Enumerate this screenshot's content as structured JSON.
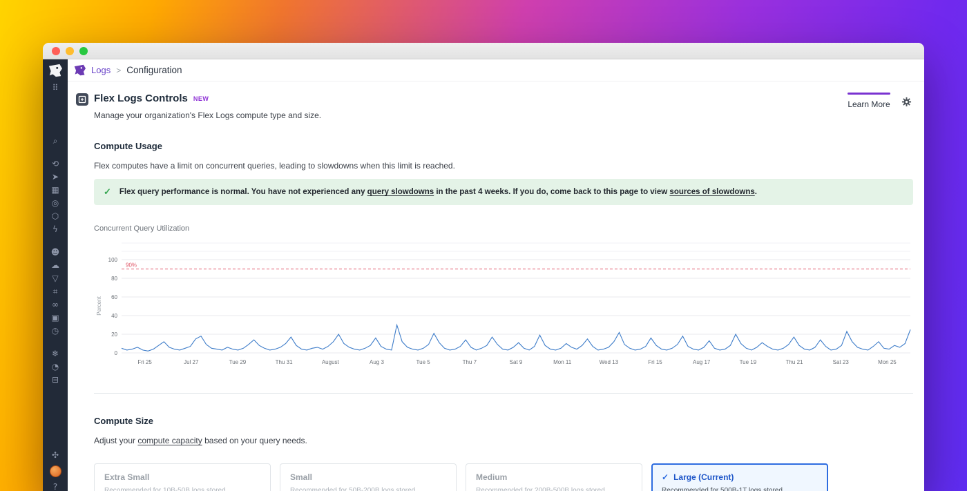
{
  "breadcrumb": {
    "app": "Logs",
    "separator": ">",
    "page": "Configuration"
  },
  "page": {
    "title": "Flex Logs Controls",
    "badge": "NEW",
    "subtitle": "Manage your organization's Flex Logs compute type and size.",
    "learn_more": "Learn More"
  },
  "compute_usage": {
    "heading": "Compute Usage",
    "description": "Flex computes have a limit on concurrent queries, leading to slowdowns when this limit is reached.",
    "banner": {
      "check_icon": "✓",
      "segments": [
        {
          "t": "Flex query performance is normal. You have not experienced any ",
          "u": false
        },
        {
          "t": "query slowdowns",
          "u": true
        },
        {
          "t": " in the past 4 weeks. If you do, come back to this page to view ",
          "u": false
        },
        {
          "t": "sources of slowdowns",
          "u": true
        },
        {
          "t": ".",
          "u": false
        }
      ]
    }
  },
  "chart_data": {
    "type": "line",
    "title": "Concurrent Query Utilization",
    "ylabel": "Percent",
    "ylim": [
      0,
      100
    ],
    "y_ticks": [
      0,
      20,
      40,
      60,
      80,
      100
    ],
    "grid": true,
    "threshold": {
      "value": 90,
      "label": "90%"
    },
    "x_ticks": [
      "Fri 25",
      "Jul 27",
      "Tue 29",
      "Thu 31",
      "August",
      "Aug 3",
      "Tue 5",
      "Thu 7",
      "Sat 9",
      "Mon 11",
      "Wed 13",
      "Fri 15",
      "Aug 17",
      "Tue 19",
      "Thu 21",
      "Sat 23",
      "Mon 25"
    ],
    "values": [
      5,
      3,
      4,
      6,
      3,
      2,
      4,
      8,
      12,
      6,
      4,
      3,
      5,
      7,
      15,
      18,
      9,
      5,
      4,
      3,
      6,
      4,
      3,
      5,
      9,
      14,
      8,
      5,
      3,
      4,
      6,
      10,
      17,
      8,
      4,
      3,
      5,
      6,
      4,
      7,
      12,
      20,
      10,
      6,
      4,
      3,
      5,
      8,
      16,
      7,
      4,
      3,
      30,
      12,
      6,
      4,
      3,
      5,
      9,
      21,
      11,
      5,
      3,
      4,
      7,
      14,
      6,
      3,
      5,
      8,
      17,
      9,
      4,
      3,
      6,
      11,
      5,
      3,
      7,
      19,
      8,
      4,
      3,
      5,
      10,
      6,
      4,
      8,
      15,
      7,
      3,
      4,
      6,
      12,
      22,
      9,
      5,
      3,
      4,
      7,
      16,
      8,
      4,
      3,
      5,
      9,
      18,
      7,
      4,
      3,
      6,
      13,
      5,
      3,
      4,
      8,
      20,
      10,
      5,
      3,
      6,
      11,
      7,
      4,
      3,
      5,
      9,
      17,
      8,
      4,
      3,
      6,
      14,
      7,
      3,
      4,
      8,
      23,
      12,
      6,
      4,
      3,
      7,
      12,
      5,
      4,
      8,
      6,
      10,
      25
    ],
    "series_color": "#3d7cc9",
    "threshold_color": "#e05667"
  },
  "compute_size": {
    "heading": "Compute Size",
    "description_segments": [
      {
        "t": "Adjust your ",
        "u": false
      },
      {
        "t": "compute capacity",
        "u": true
      },
      {
        "t": " based on your query needs.",
        "u": false
      }
    ],
    "cards": [
      {
        "title": "Extra Small",
        "subtitle": "Recommended for 10B-50B logs stored",
        "selected": false
      },
      {
        "title": "Small",
        "subtitle": "Recommended for 50B-200B logs stored",
        "selected": false
      },
      {
        "title": "Medium",
        "subtitle": "Recommended for 200B-500B logs stored",
        "selected": false
      },
      {
        "title": "Large (Current)",
        "subtitle": "Recommended for 500B-1T logs stored",
        "selected": true,
        "check": "✓"
      }
    ]
  },
  "sidebar": {
    "groups": [
      {
        "cls": "g0",
        "items": [
          {
            "name": "apps-grid-icon",
            "glyph": "⠿"
          }
        ]
      },
      {
        "cls": "g1",
        "items": [
          {
            "name": "search-icon",
            "glyph": "⌕"
          }
        ]
      },
      {
        "cls": "g2",
        "items": [
          {
            "name": "history-icon",
            "glyph": "⟲"
          },
          {
            "name": "send-icon",
            "glyph": "➤"
          },
          {
            "name": "infrastructure-icon",
            "glyph": "▦"
          },
          {
            "name": "watchdog-icon",
            "glyph": "◎"
          },
          {
            "name": "integrations-icon",
            "glyph": "⬡"
          },
          {
            "name": "events-icon",
            "glyph": "ϟ"
          }
        ]
      },
      {
        "cls": "g3",
        "items": [
          {
            "name": "rum-icon",
            "glyph": "☻"
          },
          {
            "name": "cloud-icon",
            "glyph": "☁"
          },
          {
            "name": "logs-filter-icon",
            "glyph": "▽"
          },
          {
            "name": "apm-icon",
            "glyph": "⌗"
          },
          {
            "name": "ci-icon",
            "glyph": "∞"
          },
          {
            "name": "security-icon",
            "glyph": "▣"
          },
          {
            "name": "synthetics-icon",
            "glyph": "◷"
          }
        ]
      },
      {
        "cls": "g4",
        "items": [
          {
            "name": "settings-icon",
            "glyph": "❄"
          },
          {
            "name": "gauge-icon",
            "glyph": "◔"
          },
          {
            "name": "datadog-logs-icon",
            "glyph": "⊟"
          }
        ]
      }
    ],
    "bottom": [
      {
        "name": "bug-icon",
        "glyph": "✣"
      },
      {
        "name": "user-avatar",
        "type": "avatar"
      },
      {
        "name": "help-icon",
        "glyph": "?"
      }
    ]
  },
  "colors": {
    "accent_purple": "#7a33d1",
    "brand_purple": "#6c3bb4",
    "success_green": "#36a651",
    "series_blue": "#3d7cc9",
    "threshold_red": "#e05667",
    "selected_blue": "#2d6ce0",
    "sidebar_bg": "#222a38",
    "traffic_lights": [
      "#ff5f58",
      "#ffbd2e",
      "#28c841"
    ]
  }
}
